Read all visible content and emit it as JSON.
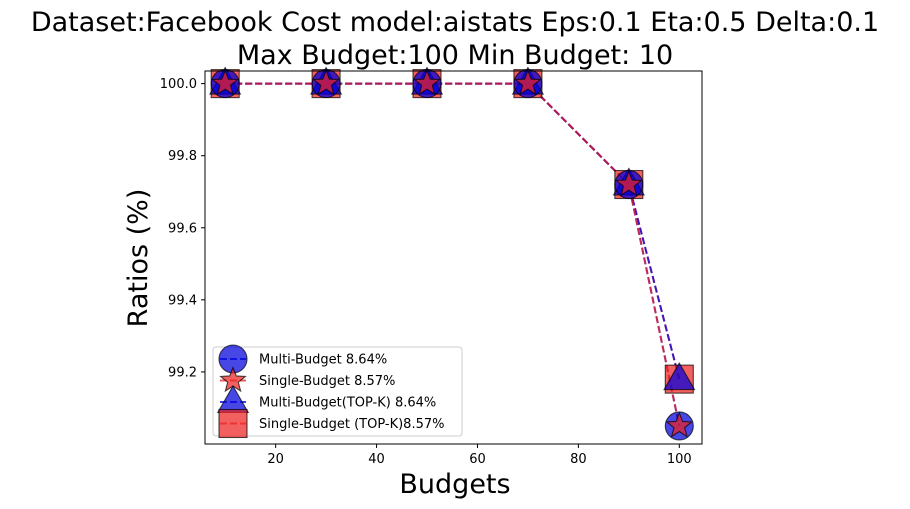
{
  "chart_data": {
    "type": "line",
    "title_line1": "Dataset:Facebook Cost model:aistats Eps:0.1 Eta:0.5 Delta:0.1",
    "title_line2": "Max Budget:100 Min Budget: 10",
    "xlabel": "Budgets",
    "ylabel": "Ratios (%)",
    "xlim": [
      6,
      104.5
    ],
    "ylim": [
      99.0,
      100.035
    ],
    "xticks": [
      20,
      40,
      60,
      80,
      100
    ],
    "yticks": [
      99.2,
      99.4,
      99.6,
      99.8,
      100.0
    ],
    "ytick_labels": [
      "99.2",
      "99.4",
      "99.6",
      "99.8",
      "100.0"
    ],
    "x": [
      10,
      30,
      50,
      70,
      90,
      100
    ],
    "series": [
      {
        "name": "Multi-Budget 8.64%",
        "label": "Multi-Budget 8.64%",
        "marker": "circle",
        "color": "#0000dd",
        "values": [
          100.0,
          100.0,
          100.0,
          100.0,
          99.72,
          99.05
        ]
      },
      {
        "name": "Single-Budget 8.57%",
        "label": "Single-Budget 8.57%",
        "marker": "star",
        "color": "#ee2222",
        "values": [
          100.0,
          100.0,
          100.0,
          100.0,
          99.72,
          99.05
        ]
      },
      {
        "name": "Multi-Budget(TOP-K) 8.64%",
        "label": "Multi-Budget(TOP-K) 8.64%",
        "marker": "triangle",
        "color": "#0000dd",
        "values": [
          100.0,
          100.0,
          100.0,
          100.0,
          99.72,
          99.18
        ]
      },
      {
        "name": "Single-Budget (TOP-K)8.57%",
        "label": "Single-Budget (TOP-K)8.57%",
        "marker": "square",
        "color": "#ee2222",
        "values": [
          100.0,
          100.0,
          100.0,
          100.0,
          99.72,
          99.18
        ]
      }
    ],
    "legend_position": "lower-left"
  }
}
